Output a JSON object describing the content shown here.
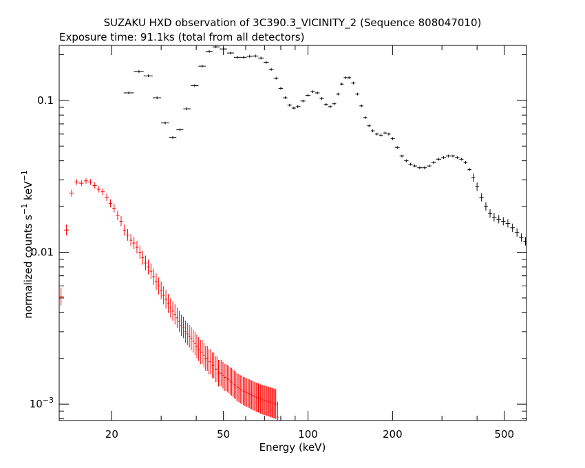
{
  "chart_data": {
    "type": "scatter",
    "title": "SUZAKU HXD observation of 3C390.3_VICINITY_2 (Sequence 808047010)",
    "subtitle": "Exposure time: 91.1ks (total from all detectors)",
    "xlabel": "Energy (keV)",
    "ylabel_main": "normalized counts s",
    "ylabel_sup1": "−1",
    "ylabel_mid": " keV",
    "ylabel_sup2": "−1",
    "x_scale": "log",
    "y_scale": "log",
    "xlim": [
      13,
      600
    ],
    "ylim": [
      0.00078,
      0.23
    ],
    "x_ticks": [
      {
        "value": 20,
        "label": "20"
      },
      {
        "value": 50,
        "label": "50"
      },
      {
        "value": 100,
        "label": "100"
      },
      {
        "value": 200,
        "label": "200"
      },
      {
        "value": 500,
        "label": "500"
      }
    ],
    "y_ticks": [
      {
        "value": 0.1,
        "label": "0.1"
      },
      {
        "value": 0.01,
        "label": "0.01"
      },
      {
        "value": 0.001,
        "label": "10",
        "sup": "−3"
      }
    ],
    "colors": {
      "gso": "#000000",
      "pin": "#ff0000"
    },
    "series": [
      {
        "id": "gso",
        "color": "#000000",
        "points": [
          [
            23,
            0.112
          ],
          [
            25,
            0.155
          ],
          [
            27,
            0.145
          ],
          [
            29,
            0.104
          ],
          [
            31,
            0.071
          ],
          [
            33,
            0.057
          ],
          [
            35,
            0.064
          ],
          [
            37,
            0.088
          ],
          [
            39.5,
            0.125
          ],
          [
            42,
            0.168
          ],
          [
            44.5,
            0.21
          ],
          [
            47,
            0.225
          ],
          [
            50,
            0.218
          ],
          [
            53,
            0.205
          ],
          [
            56,
            0.192
          ],
          [
            59,
            0.192
          ],
          [
            62,
            0.195
          ],
          [
            65,
            0.196
          ],
          [
            68,
            0.19
          ],
          [
            71,
            0.178
          ],
          [
            74,
            0.16
          ],
          [
            77,
            0.14
          ],
          [
            80,
            0.12
          ],
          [
            83,
            0.104
          ],
          [
            86,
            0.093
          ],
          [
            89,
            0.089
          ],
          [
            92,
            0.091
          ],
          [
            96,
            0.099
          ],
          [
            100,
            0.108
          ],
          [
            104,
            0.114
          ],
          [
            108,
            0.112
          ],
          [
            112,
            0.103
          ],
          [
            116,
            0.094
          ],
          [
            120,
            0.091
          ],
          [
            124,
            0.095
          ],
          [
            128,
            0.11
          ],
          [
            132,
            0.128
          ],
          [
            136,
            0.141
          ],
          [
            140,
            0.141
          ],
          [
            145,
            0.13
          ],
          [
            150,
            0.11
          ],
          [
            155,
            0.092
          ],
          [
            160,
            0.077
          ],
          [
            165,
            0.068
          ],
          [
            170,
            0.063
          ],
          [
            176,
            0.06
          ],
          [
            182,
            0.059
          ],
          [
            188,
            0.061
          ],
          [
            194,
            0.06
          ],
          [
            200,
            0.056
          ],
          [
            208,
            0.049
          ],
          [
            216,
            0.043
          ],
          [
            224,
            0.04
          ],
          [
            232,
            0.038
          ],
          [
            240,
            0.037
          ],
          [
            250,
            0.036
          ],
          [
            260,
            0.036
          ],
          [
            270,
            0.037
          ],
          [
            280,
            0.039
          ],
          [
            292,
            0.041
          ],
          [
            304,
            0.042
          ],
          [
            316,
            0.043
          ],
          [
            328,
            0.043
          ],
          [
            340,
            0.042
          ],
          [
            352,
            0.041
          ],
          [
            364,
            0.039
          ],
          [
            376,
            0.035
          ],
          [
            388,
            0.031
          ],
          [
            400,
            0.027
          ],
          [
            415,
            0.023
          ],
          [
            430,
            0.02
          ],
          [
            445,
            0.018
          ],
          [
            460,
            0.017
          ],
          [
            478,
            0.0165
          ],
          [
            496,
            0.016
          ],
          [
            515,
            0.0155
          ],
          [
            535,
            0.0145
          ],
          [
            555,
            0.0135
          ],
          [
            575,
            0.0125
          ],
          [
            595,
            0.0118
          ]
        ]
      },
      {
        "id": "pin",
        "color": "#ff0000",
        "points": [
          [
            13.2,
            0.0051
          ],
          [
            13.8,
            0.014
          ],
          [
            14.4,
            0.0245
          ],
          [
            15.0,
            0.029
          ],
          [
            15.6,
            0.0285
          ],
          [
            16.2,
            0.0295
          ],
          [
            16.8,
            0.029
          ],
          [
            17.4,
            0.0275
          ],
          [
            18.0,
            0.026
          ],
          [
            18.6,
            0.025
          ],
          [
            19.2,
            0.023
          ],
          [
            19.8,
            0.021
          ],
          [
            20.4,
            0.0195
          ],
          [
            21.0,
            0.0175
          ],
          [
            21.6,
            0.016
          ],
          [
            22.2,
            0.014
          ],
          [
            22.8,
            0.013
          ],
          [
            23.4,
            0.012
          ],
          [
            24.0,
            0.0115
          ],
          [
            24.6,
            0.0108
          ],
          [
            25.2,
            0.01
          ],
          [
            25.8,
            0.0092
          ],
          [
            26.4,
            0.0085
          ],
          [
            27.0,
            0.008
          ],
          [
            27.6,
            0.0075
          ],
          [
            28.2,
            0.0069
          ],
          [
            28.8,
            0.0064
          ],
          [
            29.4,
            0.006
          ],
          [
            30.0,
            0.0056
          ],
          [
            30.6,
            0.0052
          ],
          [
            31.2,
            0.0049
          ],
          [
            31.8,
            0.0046
          ],
          [
            32.4,
            0.0043
          ],
          [
            33.0,
            0.0041
          ],
          [
            33.6,
            0.0039
          ],
          [
            34.2,
            0.0037
          ],
          [
            34.8,
            0.0035
          ],
          [
            35.4,
            0.0033
          ],
          [
            36.0,
            0.0032
          ],
          [
            36.6,
            0.003
          ],
          [
            37.2,
            0.0029
          ],
          [
            37.8,
            0.0028
          ],
          [
            38.4,
            0.0027
          ],
          [
            39.0,
            0.0026
          ],
          [
            39.6,
            0.0025
          ],
          [
            40.2,
            0.0024
          ],
          [
            40.8,
            0.0023
          ],
          [
            41.4,
            0.0022
          ],
          [
            42.0,
            0.0022
          ],
          [
            42.6,
            0.0021
          ],
          [
            43.2,
            0.002
          ],
          [
            43.8,
            0.002
          ],
          [
            44.4,
            0.0019
          ],
          [
            45.0,
            0.0019
          ],
          [
            45.6,
            0.0018
          ],
          [
            46.2,
            0.0018
          ],
          [
            46.8,
            0.0017
          ],
          [
            47.4,
            0.0017
          ],
          [
            48.0,
            0.0016
          ],
          [
            48.6,
            0.0016
          ],
          [
            49.2,
            0.0016
          ],
          [
            49.8,
            0.00155
          ],
          [
            50.4,
            0.0015
          ],
          [
            51.0,
            0.0015
          ],
          [
            51.6,
            0.00148
          ],
          [
            52.2,
            0.00145
          ],
          [
            52.8,
            0.00142
          ],
          [
            53.4,
            0.0014
          ],
          [
            54.0,
            0.00138
          ],
          [
            54.6,
            0.00135
          ],
          [
            55.2,
            0.00133
          ],
          [
            55.8,
            0.0013
          ],
          [
            56.4,
            0.00128
          ],
          [
            57.0,
            0.00127
          ],
          [
            57.6,
            0.00125
          ],
          [
            58.2,
            0.00124
          ],
          [
            58.8,
            0.00122
          ],
          [
            59.4,
            0.00121
          ],
          [
            60.0,
            0.0012
          ],
          [
            60.6,
            0.00119
          ],
          [
            61.2,
            0.00118
          ],
          [
            61.8,
            0.00117
          ],
          [
            62.4,
            0.00116
          ],
          [
            63.0,
            0.00115
          ],
          [
            63.6,
            0.00114
          ],
          [
            64.2,
            0.00113
          ],
          [
            64.8,
            0.00112
          ],
          [
            65.4,
            0.00111
          ],
          [
            66.0,
            0.0011
          ],
          [
            66.6,
            0.0011
          ],
          [
            67.2,
            0.00109
          ],
          [
            67.8,
            0.00108
          ],
          [
            68.4,
            0.00108
          ],
          [
            69.0,
            0.00107
          ],
          [
            69.6,
            0.00106
          ],
          [
            70.2,
            0.00106
          ],
          [
            70.8,
            0.00105
          ],
          [
            71.4,
            0.00105
          ],
          [
            72.0,
            0.00104
          ],
          [
            72.6,
            0.00104
          ],
          [
            73.2,
            0.00103
          ],
          [
            73.8,
            0.00103
          ],
          [
            74.4,
            0.00102
          ],
          [
            75.0,
            0.00102
          ],
          [
            75.6,
            0.00101
          ],
          [
            76.2,
            0.00101
          ],
          [
            76.8,
            0.001
          ],
          [
            78.0,
            0.00082
          ]
        ]
      }
    ]
  }
}
